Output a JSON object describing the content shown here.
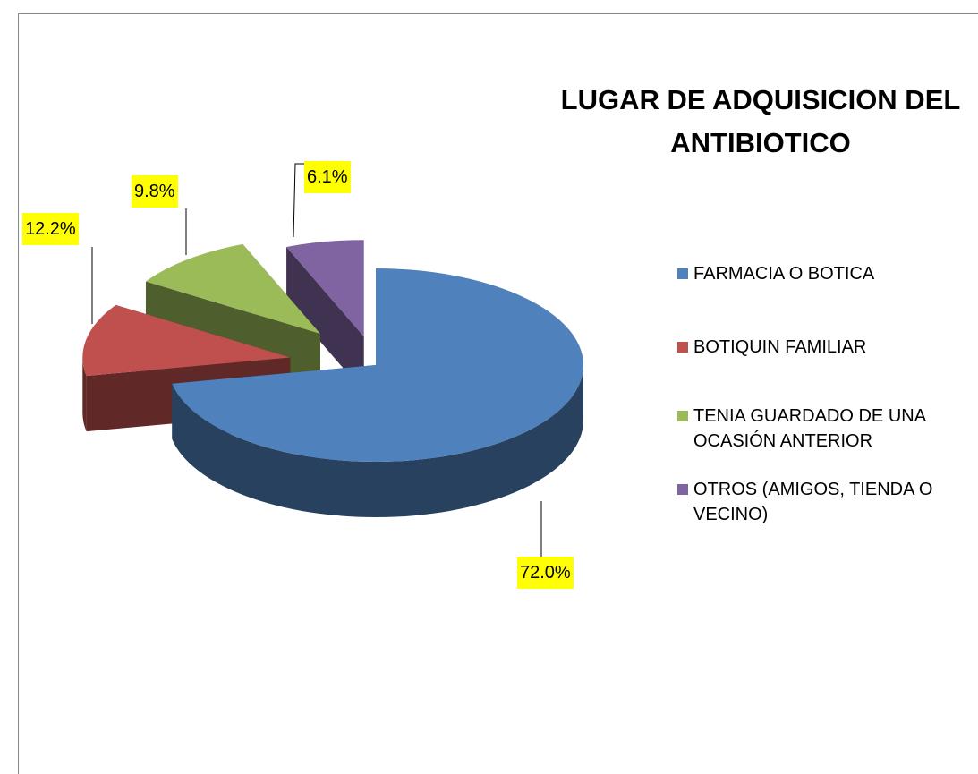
{
  "chart_data": {
    "type": "pie",
    "title": "LUGAR DE ADQUISICION DEL ANTIBIOTICO",
    "categories": [
      "FARMACIA O BOTICA",
      "BOTIQUIN FAMILIAR",
      "TENIA GUARDADO DE UNA OCASIÓN ANTERIOR",
      "OTROS (AMIGOS, TIENDA O VECINO)"
    ],
    "values": [
      72.0,
      12.2,
      9.8,
      6.1
    ],
    "value_labels": [
      "72.0%",
      "12.2%",
      "9.8%",
      "6.1%"
    ],
    "colors": [
      "#4f81bd",
      "#c0504d",
      "#9bbb59",
      "#8064a2"
    ],
    "legend": "right"
  }
}
